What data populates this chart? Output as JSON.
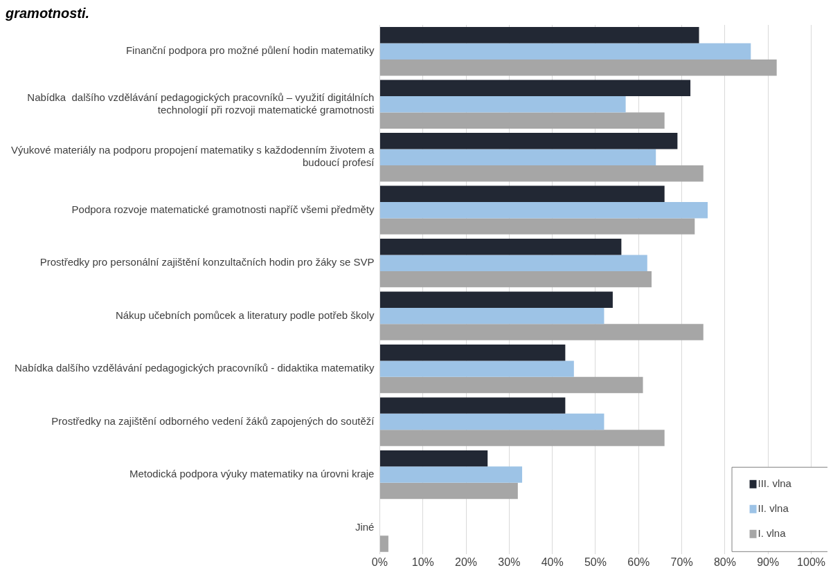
{
  "chart_data": {
    "type": "bar",
    "orientation": "horizontal",
    "title": "gramotnosti.",
    "categories": [
      "Finanční podpora pro možné půlení hodin matematiky",
      "Nabídka  dalšího vzdělávání pedagogických pracovníků – využití digitálních technologií při rozvoji matematické gramotnosti",
      "Výukové materiály na podporu propojení matematiky s každodenním životem a budoucí profesí",
      "Podpora rozvoje matematické gramotnosti napříč všemi předměty",
      "Prostředky pro personální zajištění konzultačních hodin pro žáky se SVP",
      "Nákup učebních pomůcek a literatury podle potřeb školy",
      "Nabídka dalšího vzdělávání pedagogických pracovníků - didaktika matematiky",
      "Prostředky na zajištění odborného vedení žáků zapojených do soutěží",
      "Metodická podpora výuky matematiky na úrovni kraje",
      "Jiné"
    ],
    "series": [
      {
        "name": "III. vlna",
        "color": "#222834",
        "values": [
          74,
          72,
          69,
          66,
          56,
          54,
          43,
          43,
          25,
          0
        ]
      },
      {
        "name": "II. vlna",
        "color": "#9dc3e6",
        "values": [
          86,
          57,
          64,
          76,
          62,
          52,
          45,
          52,
          33,
          0
        ]
      },
      {
        "name": "I. vlna",
        "color": "#a6a6a6",
        "values": [
          92,
          66,
          75,
          73,
          63,
          75,
          61,
          66,
          32,
          2
        ]
      }
    ],
    "xlim": [
      0,
      100
    ],
    "xticks": [
      {
        "value": 0,
        "label": "0%"
      },
      {
        "value": 10,
        "label": "10%"
      },
      {
        "value": 20,
        "label": "20%"
      },
      {
        "value": 30,
        "label": "30%"
      },
      {
        "value": 40,
        "label": "40%"
      },
      {
        "value": 50,
        "label": "50%"
      },
      {
        "value": 60,
        "label": "60%"
      },
      {
        "value": 70,
        "label": "70%"
      },
      {
        "value": 80,
        "label": "80%"
      },
      {
        "value": 90,
        "label": "90%"
      },
      {
        "value": 100,
        "label": "100%"
      }
    ],
    "grid": "x",
    "legend": "bottom right"
  }
}
